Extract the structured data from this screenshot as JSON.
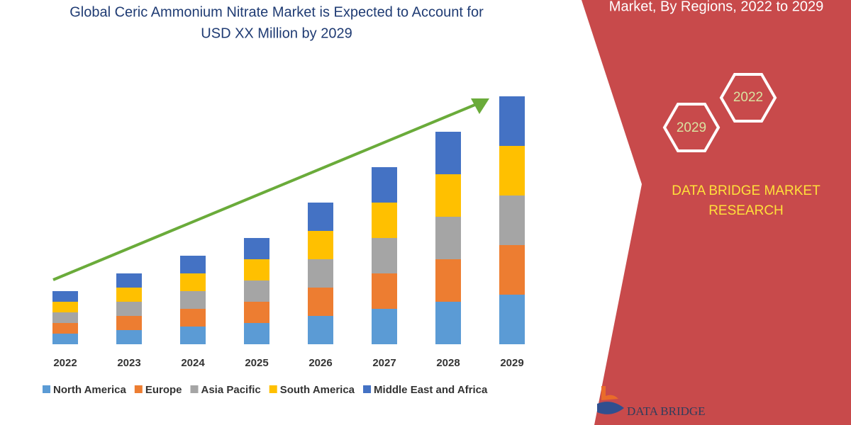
{
  "chart_data": {
    "type": "stacked_bar",
    "title": [
      "Global Ceric Ammonium Nitrate Market is Expected to Account for",
      "USD XX Million by 2029"
    ],
    "categories": [
      "2022",
      "2023",
      "2024",
      "2025",
      "2026",
      "2027",
      "2028",
      "2029"
    ],
    "series": [
      {
        "name": "North America",
        "color": "#5b9bd5",
        "values": [
          3,
          4,
          5,
          6,
          8,
          10,
          12,
          14
        ]
      },
      {
        "name": "Europe",
        "color": "#ed7d31",
        "values": [
          3,
          4,
          5,
          6,
          8,
          10,
          12,
          14
        ]
      },
      {
        "name": "Asia Pacific",
        "color": "#a5a5a5",
        "values": [
          3,
          4,
          5,
          6,
          8,
          10,
          12,
          14
        ]
      },
      {
        "name": "South America",
        "color": "#ffc000",
        "values": [
          3,
          4,
          5,
          6,
          8,
          10,
          12,
          14
        ]
      },
      {
        "name": "Middle East and Africa",
        "color": "#4472c4",
        "values": [
          3,
          4,
          5,
          6,
          8,
          10,
          12,
          14
        ]
      }
    ],
    "ylim": [
      0,
      80
    ]
  },
  "panel": {
    "heading": "Market, By Regions, 2022 to 2029",
    "hex_labels": [
      "2022",
      "2029"
    ],
    "brand": [
      "DATA BRIDGE MARKET",
      "RESEARCH"
    ],
    "logo": "DATA BRIDGE"
  }
}
